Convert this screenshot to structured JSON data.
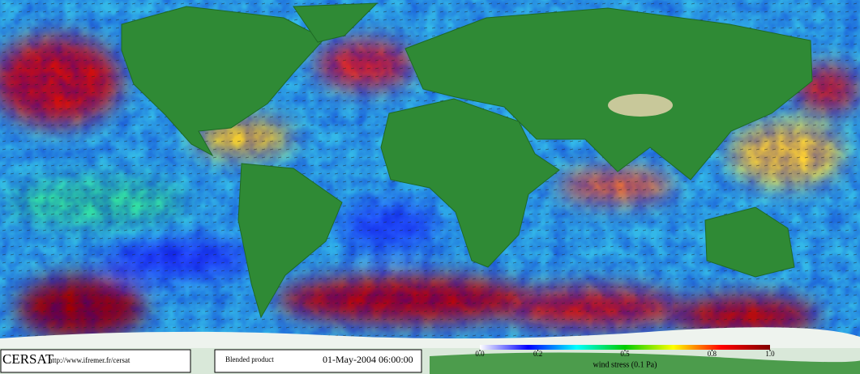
{
  "footer": {
    "logo": "CERSAT",
    "url": "http://www.ifremer.fr/cersat",
    "product": "Blended product",
    "timestamp": "01-May-2004 06:00:00"
  },
  "colorbar": {
    "label": "wind stress (0.1 Pa)",
    "lim": [
      0,
      1
    ],
    "ticks": [
      {
        "value": 0,
        "label": "0.0"
      },
      0.2,
      0.5,
      0.8,
      {
        "value": 1,
        "label": "1.0"
      }
    ],
    "colors": [
      "#ffffff",
      "#0000ff",
      "#00ffff",
      "#00cc00",
      "#ffff00",
      "#ff0000",
      "#800000"
    ]
  }
}
